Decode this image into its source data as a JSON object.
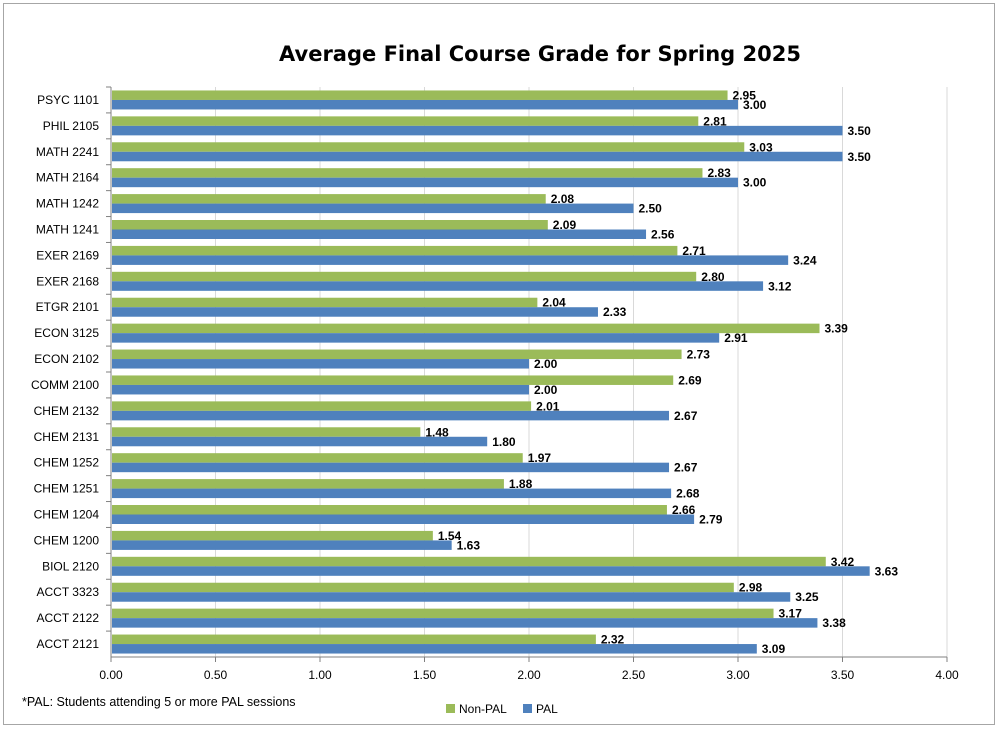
{
  "chart_data": {
    "type": "bar",
    "orientation": "horizontal",
    "title": "Average Final Course Grade for Spring 2025",
    "categories": [
      "PSYC 1101",
      "PHIL 2105",
      "MATH 2241",
      "MATH 2164",
      "MATH 1242",
      "MATH 1241",
      "EXER 2169",
      "EXER 2168",
      "ETGR 2101",
      "ECON 3125",
      "ECON 2102",
      "COMM 2100",
      "CHEM 2132",
      "CHEM 2131",
      "CHEM 1252",
      "CHEM 1251",
      "CHEM 1204",
      "CHEM 1200",
      "BIOL 2120",
      "ACCT 3323",
      "ACCT 2122",
      "ACCT 2121"
    ],
    "series": [
      {
        "name": "Non-PAL",
        "color": "#9bbb59",
        "values": [
          2.95,
          2.81,
          3.03,
          2.83,
          2.08,
          2.09,
          2.71,
          2.8,
          2.04,
          3.39,
          2.73,
          2.69,
          2.01,
          1.48,
          1.97,
          1.88,
          2.66,
          1.54,
          3.42,
          2.98,
          3.17,
          2.32
        ],
        "labels": [
          "2.95",
          "2.81",
          "3.03",
          "2.83",
          "2.08",
          "2.09",
          "2.71",
          "2.80",
          "2.04",
          "3.39",
          "2.73",
          "2.69",
          "2.01",
          "1.48",
          "1.97",
          "1.88",
          "2.66",
          "1.54",
          "3.42",
          "2.98",
          "3.17",
          "2.32"
        ]
      },
      {
        "name": "PAL",
        "color": "#4f81bd",
        "values": [
          3.0,
          3.5,
          3.5,
          3.0,
          2.5,
          2.56,
          3.24,
          3.12,
          2.33,
          2.91,
          2.0,
          2.0,
          2.67,
          1.8,
          2.67,
          2.68,
          2.79,
          1.63,
          3.63,
          3.25,
          3.38,
          3.09
        ],
        "labels": [
          "3.00",
          "3.50",
          "3.50",
          "3.00",
          "2.50",
          "2.56",
          "3.24",
          "3.12",
          "2.33",
          "2.91",
          "2.00",
          "2.00",
          "2.67",
          "1.80",
          "2.67",
          "2.68",
          "2.79",
          "1.63",
          "3.63",
          "3.25",
          "3.38",
          "3.09"
        ]
      }
    ],
    "xlim": [
      0,
      4
    ],
    "xticks": [
      0,
      0.5,
      1,
      1.5,
      2,
      2.5,
      3,
      3.5,
      4
    ],
    "xtick_labels": [
      "0.00",
      "0.50",
      "1.00",
      "1.50",
      "2.00",
      "2.50",
      "3.00",
      "3.50",
      "4.00"
    ],
    "grid": "vertical",
    "legend_position": "bottom",
    "footnote": "*PAL:  Students attending 5 or more PAL sessions"
  }
}
